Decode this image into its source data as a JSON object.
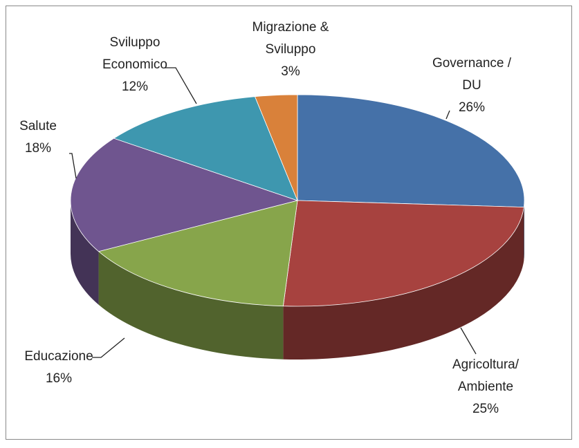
{
  "chart_data": {
    "type": "pie3d",
    "categories": [
      "Governance /\nDU",
      "Agricoltura/\nAmbiente",
      "Educazione",
      "Salute",
      "Sviluppo\nEconomico",
      "Migrazione &\nSviluppo"
    ],
    "values": [
      26,
      25,
      16,
      18,
      12,
      3
    ],
    "value_labels": [
      "26%",
      "25%",
      "16%",
      "18%",
      "12%",
      "3%"
    ],
    "colors": [
      "#4571a8",
      "#a7423f",
      "#87a54b",
      "#6f558f",
      "#3e97af",
      "#d9813a"
    ]
  }
}
